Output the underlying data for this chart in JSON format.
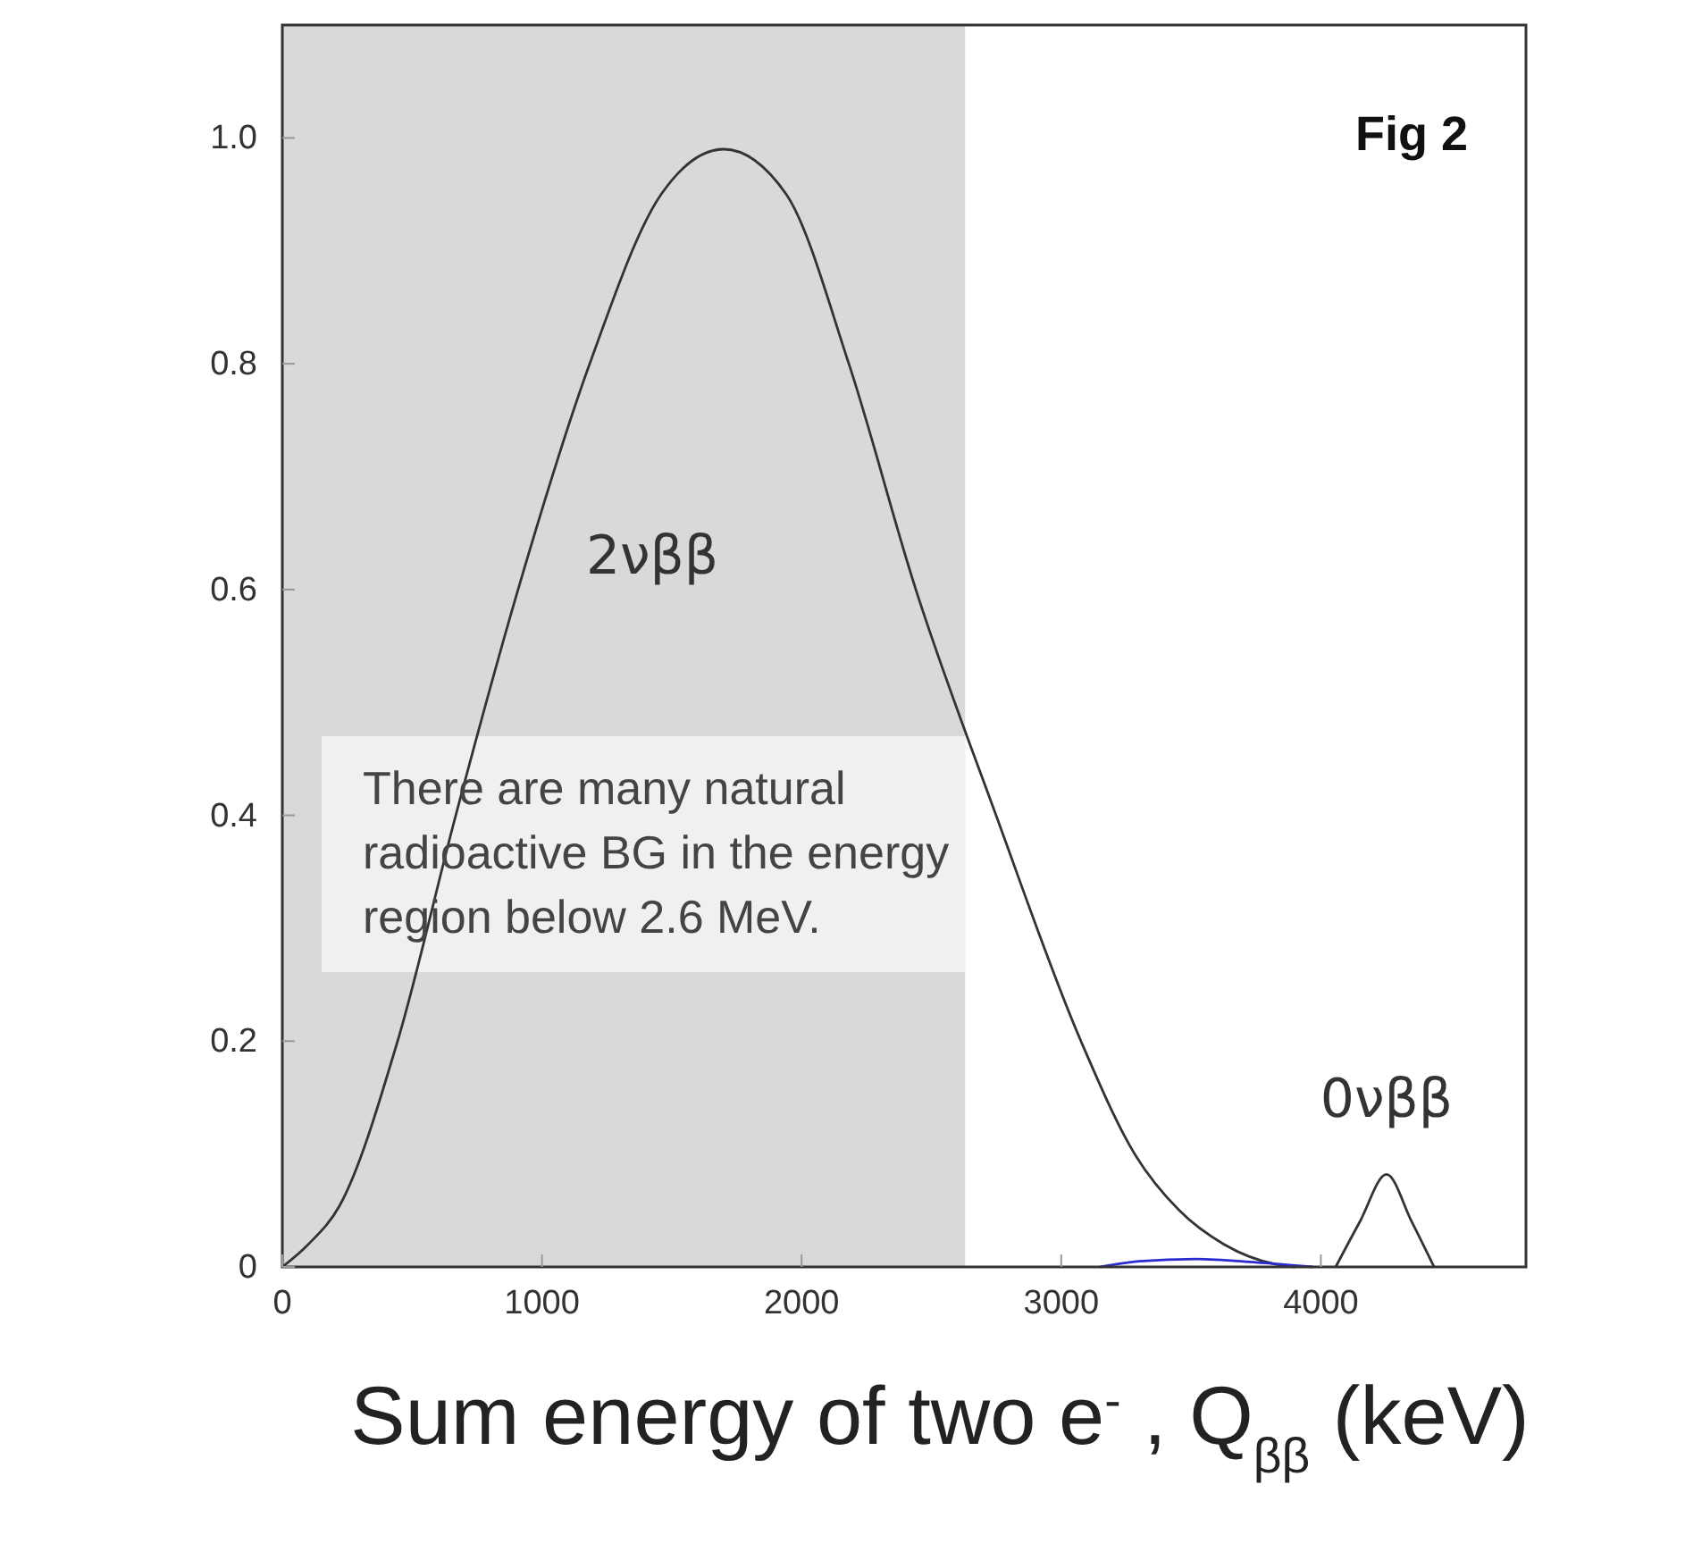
{
  "chart_data": {
    "type": "line",
    "title": "Fig 2",
    "xlabel": "Sum energy of two e$^{-}$ , Q$_{ββ}$ (keV)",
    "xlim": [
      0,
      4790
    ],
    "ylim": [
      0,
      1.1
    ],
    "xticks": [
      0,
      1000,
      2000,
      3000,
      4000
    ],
    "yticks": [
      0,
      0.2,
      0.4,
      0.6,
      0.8,
      {
        "value": 1,
        "label": "1.0"
      }
    ],
    "grid": false,
    "marker": "none",
    "line_style": "solid",
    "bands": [
      {
        "axis": "x",
        "from": 0,
        "to": 2630,
        "color": "#d9d9d9",
        "label": "There are many natural radioactive BG in the energy region below 2.6 MeV."
      }
    ],
    "series": [
      {
        "name": "2νββ",
        "color": "#333333",
        "x": [
          0,
          100,
          220,
          444,
          668,
          908,
          1184,
          1459,
          1700,
          1941,
          2182,
          2440,
          2749,
          3076,
          3283,
          3455,
          3627,
          3833,
          3900
        ],
        "values": [
          0,
          0.02,
          0.054,
          0.2,
          0.4,
          0.6,
          0.8,
          0.95,
          0.99,
          0.95,
          0.8,
          0.6,
          0.4,
          0.2,
          0.1,
          0.05,
          0.02,
          0.002,
          0
        ]
      },
      {
        "name": "0νββ",
        "color": "#333333",
        "x": [
          4057,
          4150,
          4253,
          4350,
          4436
        ],
        "values": [
          0,
          0.04,
          0.082,
          0.04,
          0
        ]
      },
      {
        "color": "#2a2ad0",
        "x": [
          3150,
          3300,
          3520,
          3750,
          3970
        ],
        "values": [
          0,
          0.005,
          0.007,
          0.004,
          0
        ]
      }
    ]
  }
}
